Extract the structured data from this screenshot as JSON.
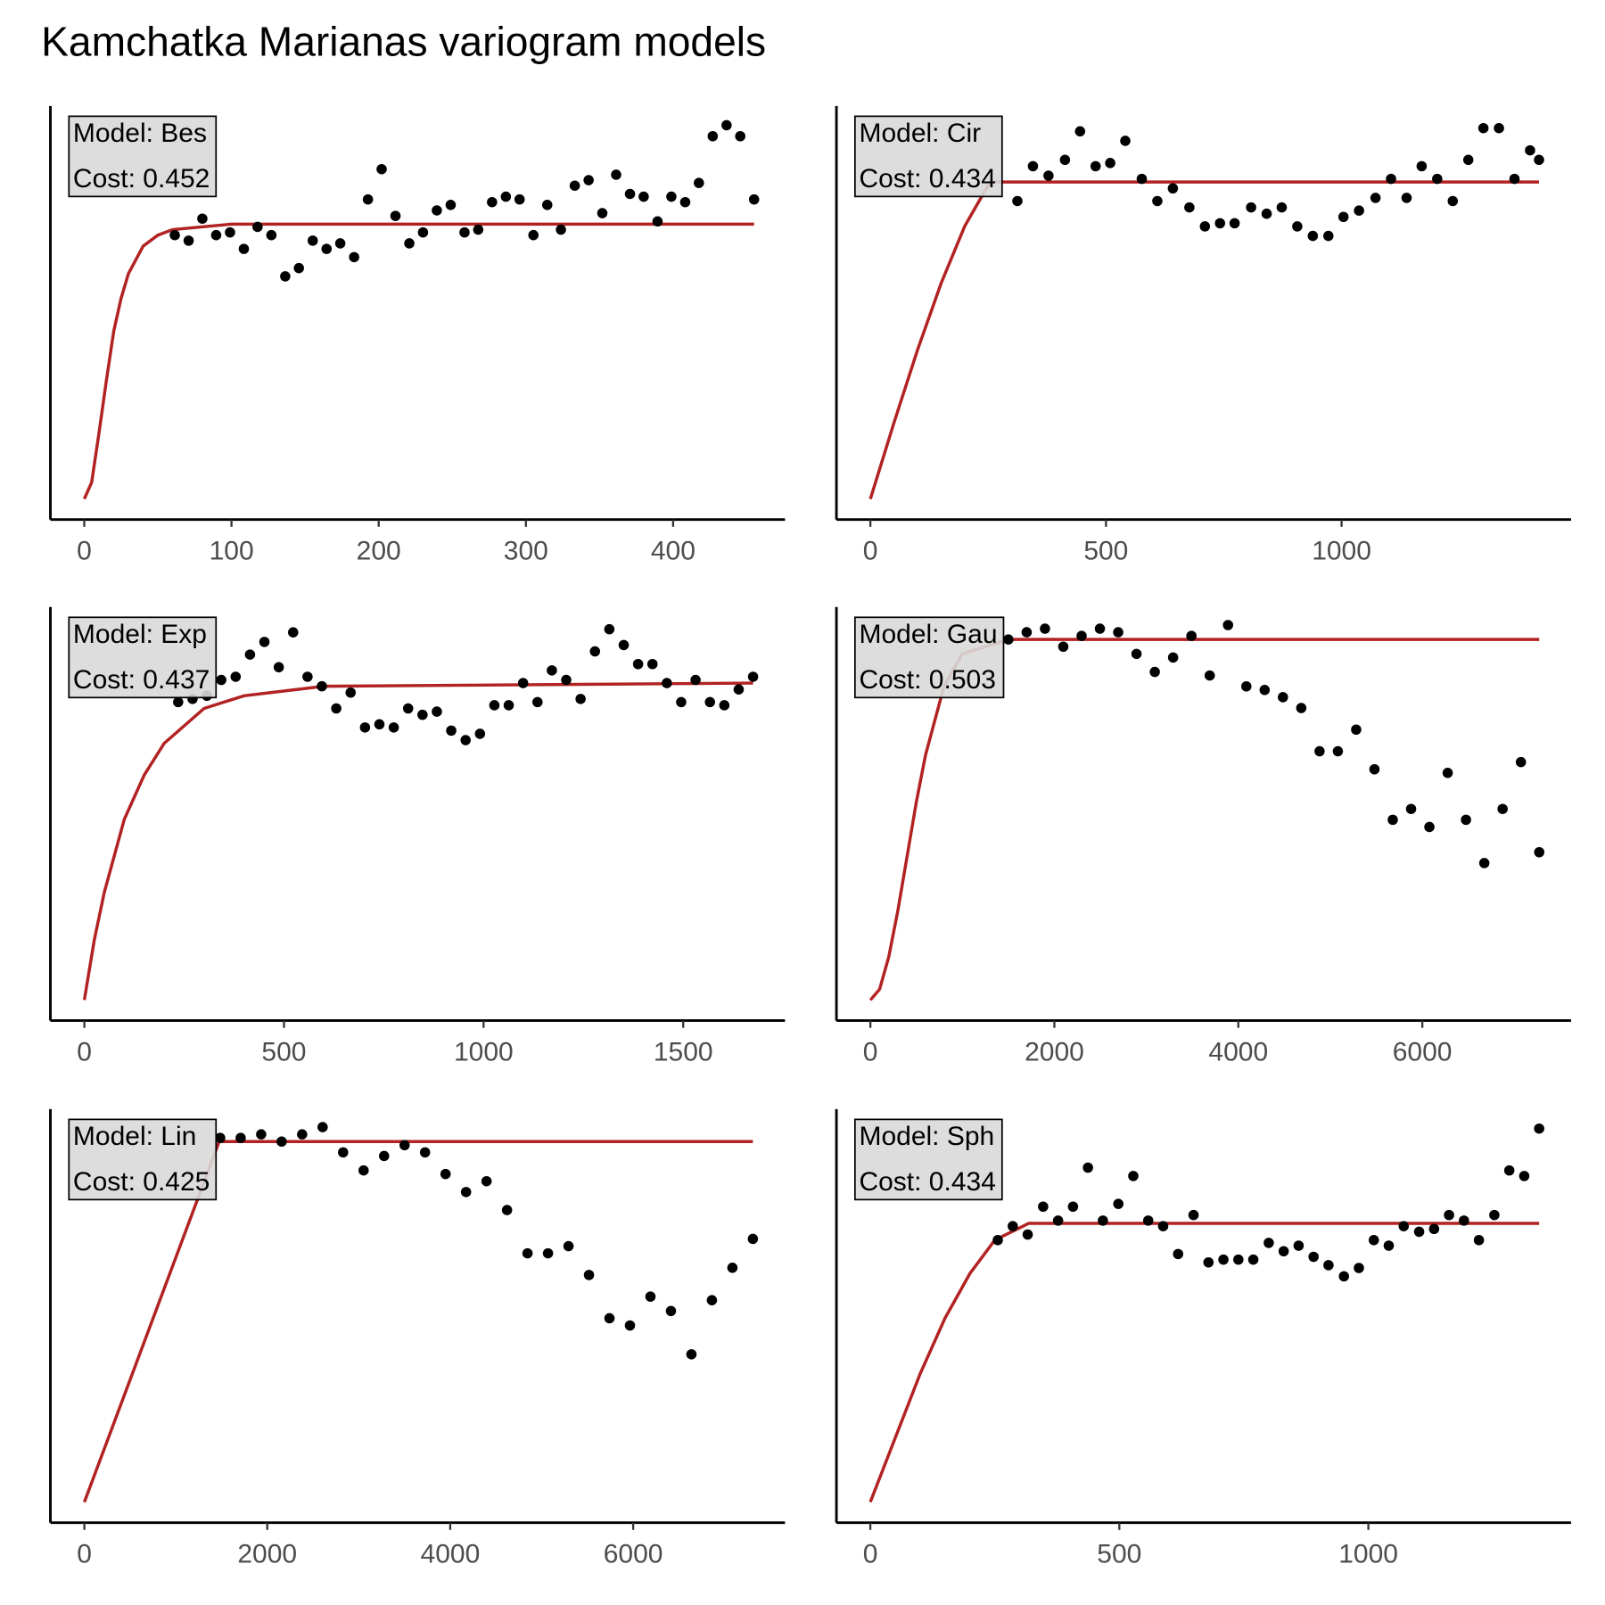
{
  "title": "Kamchatka Marianas variogram models",
  "chart_data": [
    {
      "type": "scatter",
      "annotations": [
        "Model: Bes",
        "Cost: 0.452"
      ],
      "xlim": [
        -23,
        476
      ],
      "ylim": [
        -0.075,
        1.43
      ],
      "xticks": [
        0,
        100,
        200,
        300,
        400
      ],
      "points": {
        "color": "#000000",
        "x": [
          61.5,
          70.9,
          80.2,
          89.6,
          99,
          108.4,
          117.7,
          127.1,
          136.5,
          145.8,
          155.2,
          164.6,
          173.9,
          183.3,
          192.7,
          202,
          211.4,
          220.8,
          230.1,
          239.5,
          248.9,
          258.3,
          267.6,
          277,
          286.4,
          295.7,
          305.1,
          314.5,
          323.8,
          333.2,
          342.6,
          351.9,
          361.3,
          370.7,
          380,
          389.4,
          398.8,
          408.2,
          417.5,
          426.9,
          436.3,
          445.6,
          455
        ],
        "values": [
          0.96,
          0.94,
          1.02,
          0.96,
          0.97,
          0.91,
          0.99,
          0.96,
          0.81,
          0.84,
          0.94,
          0.91,
          0.93,
          0.88,
          1.09,
          1.2,
          1.03,
          0.93,
          0.97,
          1.05,
          1.07,
          0.97,
          0.98,
          1.08,
          1.1,
          1.09,
          0.96,
          1.07,
          0.98,
          1.14,
          1.16,
          1.04,
          1.18,
          1.11,
          1.1,
          1.01,
          1.1,
          1.08,
          1.15,
          1.32,
          1.36,
          1.32,
          1.09
        ]
      },
      "model": {
        "color": "#b22222",
        "x": [
          0,
          5,
          10,
          15,
          20,
          25,
          30,
          40,
          50,
          60,
          80,
          100,
          150,
          200,
          300,
          455
        ],
        "values": [
          0,
          0.06,
          0.24,
          0.43,
          0.61,
          0.73,
          0.82,
          0.92,
          0.96,
          0.98,
          0.99,
          1,
          1,
          1,
          1,
          1
        ]
      }
    },
    {
      "type": "scatter",
      "annotations": [
        "Model: Cir",
        "Cost: 0.434"
      ],
      "xlim": [
        -72,
        1487
      ],
      "ylim": [
        -0.065,
        1.24
      ],
      "xticks": [
        0,
        500,
        1000
      ],
      "points": {
        "color": "#000000",
        "x": [
          312,
          345,
          378,
          413,
          445,
          478,
          509,
          541,
          576,
          609,
          642,
          677,
          710,
          742,
          773,
          808,
          841,
          873,
          906,
          939,
          972,
          1004,
          1037,
          1072,
          1105,
          1138,
          1170,
          1203,
          1236,
          1269,
          1301,
          1334,
          1367,
          1400,
          1419
        ],
        "values": [
          0.94,
          1.05,
          1.02,
          1.07,
          1.16,
          1.05,
          1.06,
          1.13,
          1.01,
          0.94,
          0.98,
          0.92,
          0.86,
          0.87,
          0.87,
          0.92,
          0.9,
          0.92,
          0.86,
          0.83,
          0.83,
          0.89,
          0.91,
          0.95,
          1.01,
          0.95,
          1.05,
          1.01,
          0.94,
          1.07,
          1.17,
          1.17,
          1.01,
          1.1,
          1.07
        ]
      },
      "model": {
        "color": "#b22222",
        "x": [
          0,
          50,
          100,
          150,
          200,
          250,
          260,
          1419
        ],
        "values": [
          0,
          0.24,
          0.47,
          0.68,
          0.86,
          0.99,
          1,
          1
        ]
      }
    },
    {
      "type": "scatter",
      "annotations": [
        "Model: Exp",
        "Cost: 0.437"
      ],
      "xlim": [
        -85,
        1755
      ],
      "ylim": [
        -0.065,
        1.24
      ],
      "xticks": [
        0,
        500,
        1000,
        1500
      ],
      "points": {
        "color": "#000000",
        "x": [
          235,
          271,
          307,
          343,
          379,
          415,
          451,
          487,
          523,
          559,
          595,
          631,
          667,
          703,
          739,
          775,
          811,
          847,
          883,
          919,
          955,
          991,
          1027,
          1063,
          1099,
          1135,
          1171,
          1207,
          1243,
          1279,
          1315,
          1351,
          1387,
          1423,
          1459,
          1495,
          1531,
          1567,
          1603,
          1639,
          1675
        ],
        "values": [
          0.94,
          0.95,
          0.96,
          1.01,
          1.02,
          1.09,
          1.13,
          1.05,
          1.16,
          1.02,
          0.99,
          0.92,
          0.97,
          0.86,
          0.87,
          0.86,
          0.92,
          0.9,
          0.91,
          0.85,
          0.82,
          0.84,
          0.93,
          0.93,
          1.0,
          0.94,
          1.04,
          1.01,
          0.95,
          1.1,
          1.17,
          1.12,
          1.06,
          1.06,
          1.0,
          0.94,
          1.01,
          0.94,
          0.93,
          0.98,
          1.02
        ]
      },
      "model": {
        "color": "#b22222",
        "x": [
          0,
          25,
          50,
          100,
          150,
          200,
          300,
          400,
          600,
          1675
        ],
        "values": [
          0,
          0.19,
          0.34,
          0.57,
          0.71,
          0.81,
          0.92,
          0.96,
          0.99,
          1.0
        ]
      }
    },
    {
      "type": "scatter",
      "annotations": [
        "Model: Gau",
        "Cost: 0.503"
      ],
      "xlim": [
        -369,
        7617
      ],
      "ylim": [
        -0.057,
        1.09
      ],
      "xticks": [
        0,
        2000,
        4000,
        6000
      ],
      "points": {
        "color": "#000000",
        "x": [
          1500,
          1699,
          1898,
          2097,
          2296,
          2495,
          2694,
          2893,
          3092,
          3291,
          3490,
          3689,
          3888,
          4087,
          4286,
          4485,
          4684,
          4883,
          5082,
          5281,
          5480,
          5679,
          5878,
          6077,
          6276,
          6475,
          6674,
          6873,
          7072,
          7271
        ],
        "values": [
          1.0,
          1.02,
          1.03,
          0.98,
          1.01,
          1.03,
          1.02,
          0.96,
          0.91,
          0.95,
          1.01,
          0.9,
          1.04,
          0.87,
          0.86,
          0.84,
          0.81,
          0.69,
          0.69,
          0.75,
          0.64,
          0.5,
          0.53,
          0.48,
          0.63,
          0.5,
          0.38,
          0.53,
          0.66,
          0.41
        ]
      },
      "model": {
        "color": "#b22222",
        "x": [
          0,
          100,
          200,
          300,
          400,
          500,
          600,
          800,
          1000,
          1500,
          7271
        ],
        "values": [
          0,
          0.03,
          0.12,
          0.25,
          0.4,
          0.55,
          0.68,
          0.87,
          0.96,
          1.0,
          1.0
        ]
      }
    },
    {
      "type": "scatter",
      "annotations": [
        "Model: Lin",
        "Cost: 0.425"
      ],
      "xlim": [
        -371,
        7660
      ],
      "ylim": [
        -0.057,
        1.09
      ],
      "xticks": [
        0,
        2000,
        4000,
        6000
      ],
      "points": {
        "color": "#000000",
        "x": [
          1485,
          1709,
          1933,
          2157,
          2381,
          2605,
          2829,
          3053,
          3277,
          3501,
          3725,
          3949,
          4173,
          4397,
          4621,
          4845,
          5069,
          5293,
          5517,
          5741,
          5965,
          6189,
          6413,
          6637,
          6861,
          7085,
          7309
        ],
        "values": [
          1.01,
          1.01,
          1.02,
          1.0,
          1.02,
          1.04,
          0.97,
          0.92,
          0.96,
          0.99,
          0.97,
          0.91,
          0.86,
          0.89,
          0.81,
          0.69,
          0.69,
          0.71,
          0.63,
          0.51,
          0.49,
          0.57,
          0.53,
          0.41,
          0.56,
          0.65,
          0.73
        ]
      },
      "model": {
        "color": "#b22222",
        "x": [
          0,
          1474,
          7309
        ],
        "values": [
          0,
          1,
          1
        ]
      }
    },
    {
      "type": "scatter",
      "annotations": [
        "Model: Sph",
        "Cost: 0.434"
      ],
      "xlim": [
        -68,
        1407
      ],
      "ylim": [
        -0.074,
        1.41
      ],
      "xticks": [
        0,
        500,
        1000
      ],
      "points": {
        "color": "#000000",
        "x": [
          256,
          286,
          316,
          347,
          377,
          407,
          437,
          467,
          498,
          528,
          558,
          588,
          618,
          649,
          679,
          709,
          739,
          769,
          800,
          830,
          860,
          890,
          920,
          951,
          981,
          1011,
          1041,
          1071,
          1102,
          1132,
          1162,
          1192,
          1222,
          1253,
          1283,
          1313,
          1343
        ],
        "values": [
          0.94,
          0.99,
          0.96,
          1.06,
          1.01,
          1.06,
          1.2,
          1.01,
          1.07,
          1.17,
          1.01,
          0.99,
          0.89,
          1.03,
          0.86,
          0.87,
          0.87,
          0.87,
          0.93,
          0.9,
          0.92,
          0.88,
          0.85,
          0.81,
          0.84,
          0.94,
          0.92,
          0.99,
          0.97,
          0.98,
          1.03,
          1.01,
          0.94,
          1.03,
          1.19,
          1.17,
          1.34
        ]
      },
      "model": {
        "color": "#b22222",
        "x": [
          0,
          50,
          100,
          150,
          200,
          250,
          318,
          1343
        ],
        "values": [
          0,
          0.23,
          0.46,
          0.66,
          0.82,
          0.94,
          1,
          1
        ]
      }
    }
  ]
}
